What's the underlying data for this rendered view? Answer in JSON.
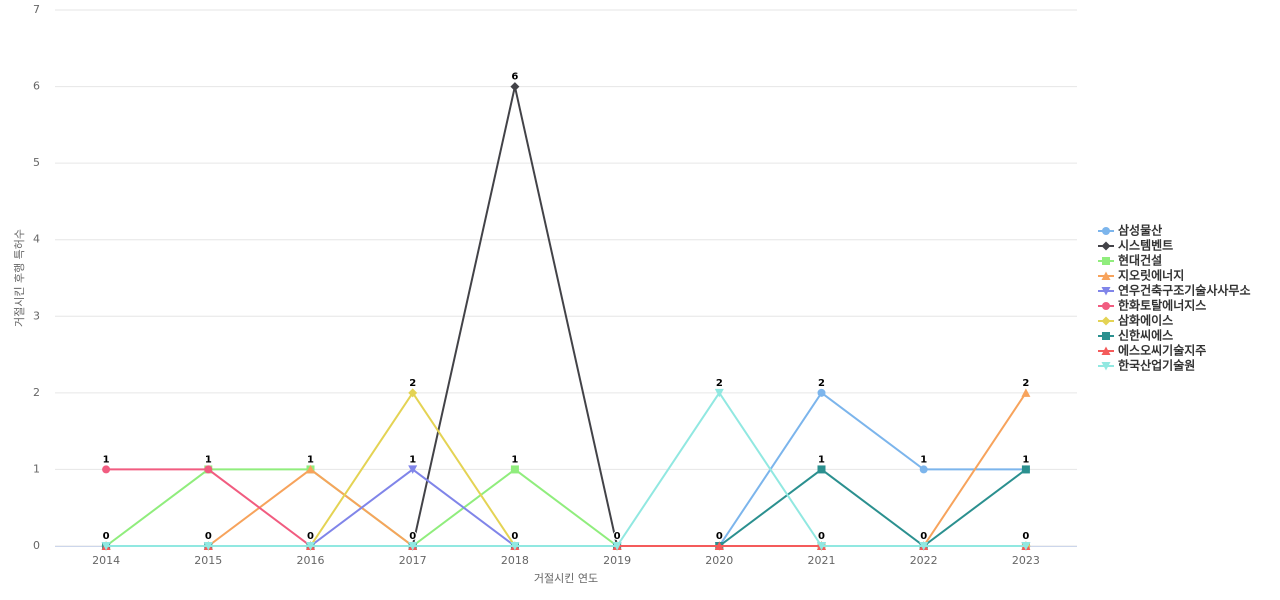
{
  "chart_data": {
    "type": "line",
    "x_label": "거절시킨 연도",
    "y_label": "거절시킨 후행 특허수",
    "categories": [
      "2014",
      "2015",
      "2016",
      "2017",
      "2018",
      "2019",
      "2020",
      "2021",
      "2022",
      "2023"
    ],
    "ylim": [
      0,
      7
    ],
    "yticks": [
      0,
      1,
      2,
      3,
      4,
      5,
      6,
      7
    ],
    "grid": true,
    "legend": "right",
    "series": [
      {
        "name": "삼성물산",
        "color": "#7cb5ec",
        "marker": "circle",
        "values": [
          0,
          0,
          0,
          0,
          0,
          0,
          0,
          2,
          1,
          1
        ]
      },
      {
        "name": "시스템벤트",
        "color": "#434348",
        "marker": "diamond",
        "values": [
          0,
          0,
          0,
          0,
          6,
          0,
          0,
          0,
          0,
          0
        ]
      },
      {
        "name": "현대건설",
        "color": "#90ed7d",
        "marker": "square",
        "values": [
          0,
          1,
          1,
          0,
          1,
          0,
          0,
          0,
          0,
          0
        ]
      },
      {
        "name": "지오릿에너지",
        "color": "#f7a35c",
        "marker": "triangle",
        "values": [
          0,
          0,
          1,
          0,
          0,
          0,
          0,
          0,
          0,
          2
        ]
      },
      {
        "name": "연우건축구조기술사사무소",
        "color": "#8085e9",
        "marker": "triangle-down",
        "values": [
          0,
          0,
          0,
          1,
          0,
          0,
          0,
          0,
          0,
          0
        ]
      },
      {
        "name": "한화토탈에너지스",
        "color": "#f15c80",
        "marker": "circle",
        "values": [
          1,
          1,
          0,
          0,
          0,
          0,
          0,
          0,
          0,
          0
        ]
      },
      {
        "name": "삼화에이스",
        "color": "#e4d354",
        "marker": "diamond",
        "values": [
          0,
          0,
          0,
          2,
          0,
          0,
          0,
          0,
          0,
          0
        ]
      },
      {
        "name": "신한씨에스",
        "color": "#2b908f",
        "marker": "square",
        "values": [
          0,
          0,
          0,
          0,
          0,
          0,
          0,
          1,
          0,
          1
        ]
      },
      {
        "name": "에스오씨기술지주",
        "color": "#f45b5b",
        "marker": "triangle",
        "values": [
          0,
          0,
          0,
          0,
          0,
          0,
          0,
          0,
          0,
          0
        ]
      },
      {
        "name": "한국산업기술원",
        "color": "#91e8e1",
        "marker": "triangle-down",
        "values": [
          0,
          0,
          0,
          0,
          0,
          0,
          2,
          0,
          0,
          0
        ]
      }
    ]
  }
}
